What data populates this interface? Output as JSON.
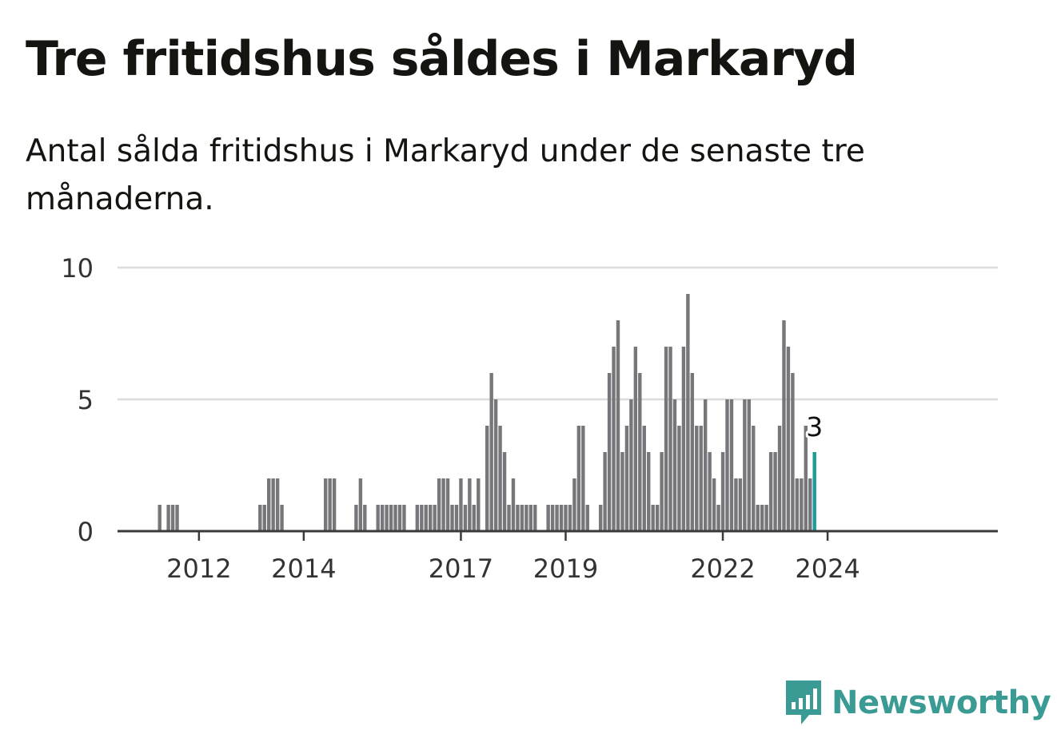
{
  "header": {
    "title": "Tre fritidshus såldes i Markaryd",
    "subtitle": "Antal sålda fritidshus i Markaryd under de senaste tre månaderna."
  },
  "brand": {
    "name": "Newsworthy",
    "icon": "newsworthy-logo-icon",
    "color": "#3a9a94"
  },
  "chart_data": {
    "type": "bar",
    "title": "Tre fritidshus såldes i Markaryd",
    "subtitle": "Antal sålda fritidshus i Markaryd under de senaste tre månaderna.",
    "x_start": "2011-04",
    "x_interval": "month",
    "values": [
      1,
      0,
      1,
      1,
      1,
      0,
      0,
      0,
      0,
      0,
      0,
      0,
      0,
      0,
      0,
      0,
      0,
      0,
      0,
      0,
      0,
      0,
      0,
      1,
      1,
      2,
      2,
      2,
      1,
      0,
      0,
      0,
      0,
      0,
      0,
      0,
      0,
      0,
      2,
      2,
      2,
      0,
      0,
      0,
      0,
      1,
      2,
      1,
      0,
      0,
      1,
      1,
      1,
      1,
      1,
      1,
      1,
      0,
      0,
      1,
      1,
      1,
      1,
      1,
      2,
      2,
      2,
      1,
      1,
      2,
      1,
      2,
      1,
      2,
      0,
      4,
      6,
      5,
      4,
      3,
      1,
      2,
      1,
      1,
      1,
      1,
      1,
      0,
      0,
      1,
      1,
      1,
      1,
      1,
      1,
      2,
      4,
      4,
      1,
      0,
      0,
      1,
      3,
      6,
      7,
      8,
      3,
      4,
      5,
      7,
      6,
      4,
      3,
      1,
      1,
      3,
      7,
      7,
      5,
      4,
      7,
      9,
      6,
      4,
      4,
      5,
      3,
      2,
      1,
      3,
      5,
      5,
      2,
      2,
      5,
      5,
      4,
      1,
      1,
      1,
      3,
      3,
      4,
      8,
      7,
      6,
      2,
      2,
      4,
      2,
      3
    ],
    "highlight": {
      "label": "3",
      "value": 3,
      "color": "#1a9d9a"
    },
    "x_ticks": [
      "2012",
      "2014",
      "2017",
      "2019",
      "2022",
      "2024"
    ],
    "y_ticks": [
      0,
      5,
      10
    ],
    "ylim": [
      0,
      10
    ],
    "bar_color": "#77767a",
    "grid": true,
    "legend": "none"
  }
}
